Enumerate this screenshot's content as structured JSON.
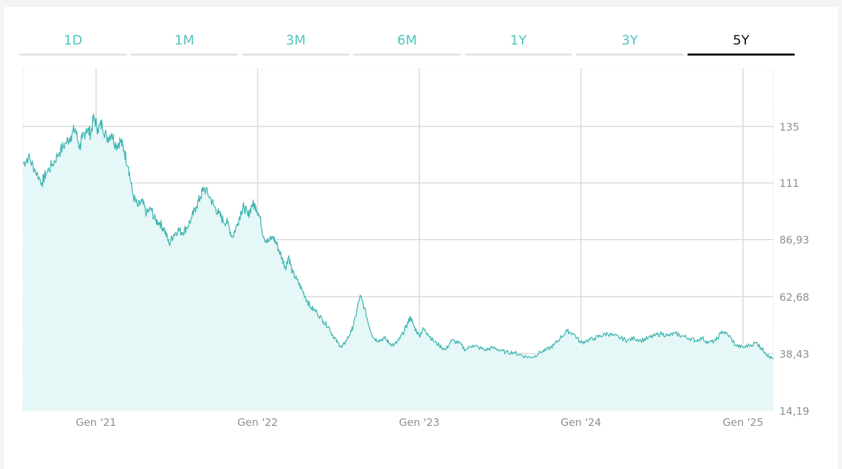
{
  "tabs": [
    {
      "label": "1D",
      "active": false
    },
    {
      "label": "1M",
      "active": false
    },
    {
      "label": "3M",
      "active": false
    },
    {
      "label": "6M",
      "active": false
    },
    {
      "label": "1Y",
      "active": false
    },
    {
      "label": "3Y",
      "active": false
    },
    {
      "label": "5Y",
      "active": true
    }
  ],
  "colors": {
    "accent": "#4fc3c0",
    "line": "#3fb5b0",
    "fill": "#e6f7f7",
    "grid": "#d5d9dd",
    "active_tab": "#111111",
    "inactive_tab_border": "#dfe5ea"
  },
  "chart_data": {
    "type": "area",
    "title": "",
    "xlabel": "",
    "ylabel": "",
    "x_ticks": [
      "Gen '21",
      "Gen '22",
      "Gen '23",
      "Gen '24",
      "Gen '25"
    ],
    "y_ticks": [
      "135",
      "111",
      "86,93",
      "62,68",
      "38,43",
      "14,19"
    ],
    "y_tick_values": [
      135,
      111,
      86.93,
      62.68,
      38.43,
      14.19
    ],
    "ylim": [
      14.19,
      159.5
    ],
    "xlim": [
      "2020-07-20",
      "2025-03-10"
    ],
    "grid": true,
    "series": [
      {
        "points": [
          [
            "2020-07-20",
            119
          ],
          [
            "2020-08-01",
            122
          ],
          [
            "2020-08-15",
            117
          ],
          [
            "2020-09-01",
            111
          ],
          [
            "2020-09-10",
            115
          ],
          [
            "2020-09-25",
            119
          ],
          [
            "2020-10-10",
            124
          ],
          [
            "2020-10-25",
            128
          ],
          [
            "2020-11-05",
            131
          ],
          [
            "2020-11-15",
            134
          ],
          [
            "2020-11-25",
            126
          ],
          [
            "2020-12-01",
            130
          ],
          [
            "2020-12-10",
            134
          ],
          [
            "2020-12-20",
            132
          ],
          [
            "2020-12-27",
            139
          ],
          [
            "2021-01-05",
            134
          ],
          [
            "2021-01-15",
            136
          ],
          [
            "2021-01-25",
            130
          ],
          [
            "2021-02-05",
            132
          ],
          [
            "2021-02-15",
            127
          ],
          [
            "2021-02-25",
            129
          ],
          [
            "2021-03-05",
            125
          ],
          [
            "2021-03-15",
            118
          ],
          [
            "2021-03-25",
            106
          ],
          [
            "2021-04-05",
            101
          ],
          [
            "2021-04-15",
            103
          ],
          [
            "2021-04-25",
            98
          ],
          [
            "2021-05-05",
            100
          ],
          [
            "2021-05-15",
            95
          ],
          [
            "2021-05-25",
            94
          ],
          [
            "2021-06-05",
            91
          ],
          [
            "2021-06-15",
            85
          ],
          [
            "2021-06-25",
            89
          ],
          [
            "2021-07-05",
            91
          ],
          [
            "2021-07-15",
            90
          ],
          [
            "2021-07-25",
            92
          ],
          [
            "2021-08-05",
            96
          ],
          [
            "2021-08-15",
            101
          ],
          [
            "2021-08-25",
            105
          ],
          [
            "2021-09-01",
            109
          ],
          [
            "2021-09-15",
            105
          ],
          [
            "2021-09-25",
            101
          ],
          [
            "2021-10-05",
            98
          ],
          [
            "2021-10-15",
            95
          ],
          [
            "2021-10-25",
            94
          ],
          [
            "2021-11-05",
            88
          ],
          [
            "2021-11-15",
            93
          ],
          [
            "2021-11-25",
            99
          ],
          [
            "2021-12-01",
            101
          ],
          [
            "2021-12-10",
            97
          ],
          [
            "2021-12-20",
            102
          ],
          [
            "2021-12-28",
            101
          ],
          [
            "2022-01-05",
            97
          ],
          [
            "2022-01-15",
            88
          ],
          [
            "2022-01-25",
            86
          ],
          [
            "2022-02-05",
            88
          ],
          [
            "2022-02-15",
            84
          ],
          [
            "2022-02-25",
            79
          ],
          [
            "2022-03-05",
            75
          ],
          [
            "2022-03-12",
            80
          ],
          [
            "2022-03-20",
            73
          ],
          [
            "2022-03-30",
            70
          ],
          [
            "2022-04-10",
            66
          ],
          [
            "2022-04-20",
            62
          ],
          [
            "2022-05-01",
            58
          ],
          [
            "2022-05-15",
            56
          ],
          [
            "2022-05-30",
            52
          ],
          [
            "2022-06-10",
            50
          ],
          [
            "2022-06-20",
            46
          ],
          [
            "2022-07-01",
            43
          ],
          [
            "2022-07-10",
            41
          ],
          [
            "2022-07-20",
            44
          ],
          [
            "2022-08-01",
            48
          ],
          [
            "2022-08-10",
            54
          ],
          [
            "2022-08-20",
            63
          ],
          [
            "2022-08-30",
            58
          ],
          [
            "2022-09-10",
            50
          ],
          [
            "2022-09-20",
            45
          ],
          [
            "2022-10-01",
            44
          ],
          [
            "2022-10-15",
            45
          ],
          [
            "2022-10-25",
            43
          ],
          [
            "2022-11-05",
            42
          ],
          [
            "2022-11-15",
            44
          ],
          [
            "2022-11-25",
            47
          ],
          [
            "2022-12-05",
            51
          ],
          [
            "2022-12-12",
            54
          ],
          [
            "2022-12-20",
            50
          ],
          [
            "2023-01-01",
            46
          ],
          [
            "2023-01-10",
            49
          ],
          [
            "2023-01-20",
            47
          ],
          [
            "2023-02-01",
            44
          ],
          [
            "2023-02-15",
            42
          ],
          [
            "2023-03-01",
            40
          ],
          [
            "2023-03-15",
            44
          ],
          [
            "2023-04-01",
            43
          ],
          [
            "2023-04-15",
            40
          ],
          [
            "2023-05-01",
            42
          ],
          [
            "2023-05-15",
            41
          ],
          [
            "2023-06-01",
            40
          ],
          [
            "2023-06-15",
            41
          ],
          [
            "2023-07-01",
            40
          ],
          [
            "2023-07-15",
            39
          ],
          [
            "2023-08-01",
            39
          ],
          [
            "2023-08-15",
            38
          ],
          [
            "2023-09-01",
            37
          ],
          [
            "2023-09-15",
            37
          ],
          [
            "2023-10-01",
            39
          ],
          [
            "2023-10-15",
            40
          ],
          [
            "2023-11-01",
            42
          ],
          [
            "2023-11-15",
            45
          ],
          [
            "2023-12-01",
            48
          ],
          [
            "2023-12-15",
            47
          ],
          [
            "2024-01-01",
            43
          ],
          [
            "2024-01-15",
            44
          ],
          [
            "2024-02-01",
            45
          ],
          [
            "2024-02-15",
            46
          ],
          [
            "2024-03-01",
            47
          ],
          [
            "2024-03-15",
            46
          ],
          [
            "2024-04-01",
            45
          ],
          [
            "2024-04-15",
            44
          ],
          [
            "2024-05-01",
            45
          ],
          [
            "2024-05-15",
            44
          ],
          [
            "2024-06-01",
            45
          ],
          [
            "2024-06-15",
            46
          ],
          [
            "2024-07-01",
            47
          ],
          [
            "2024-07-15",
            46
          ],
          [
            "2024-08-01",
            47
          ],
          [
            "2024-08-15",
            46
          ],
          [
            "2024-09-01",
            45
          ],
          [
            "2024-09-15",
            44
          ],
          [
            "2024-10-01",
            45
          ],
          [
            "2024-10-15",
            43
          ],
          [
            "2024-11-01",
            44
          ],
          [
            "2024-11-15",
            48
          ],
          [
            "2024-12-01",
            46
          ],
          [
            "2024-12-15",
            42
          ],
          [
            "2025-01-01",
            41
          ],
          [
            "2025-01-15",
            42
          ],
          [
            "2025-02-01",
            43
          ],
          [
            "2025-02-10",
            41
          ],
          [
            "2025-02-20",
            39
          ],
          [
            "2025-03-01",
            37
          ],
          [
            "2025-03-10",
            36
          ]
        ]
      }
    ]
  }
}
